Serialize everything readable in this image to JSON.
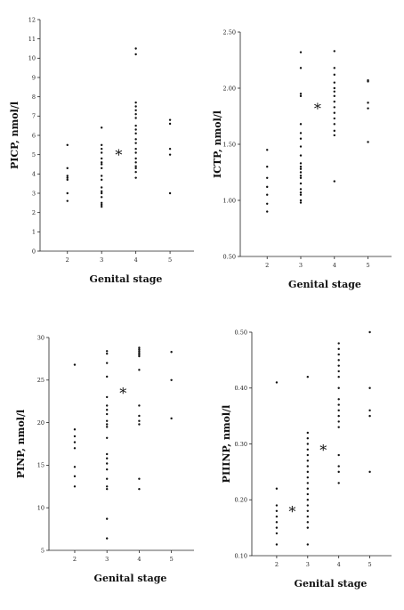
{
  "chart_data": [
    {
      "type": "scatter",
      "ylabel": "PICP, nmol/l",
      "xlabel": "Genital stage",
      "ylim": [
        0,
        12
      ],
      "yticks": [
        "0",
        "1",
        "2",
        "3",
        "4",
        "5",
        "6",
        "7",
        "8",
        "9",
        "10",
        "11",
        "12"
      ],
      "xticks": [
        "2",
        "3",
        "4",
        "5"
      ],
      "star_labels": [
        "*"
      ],
      "groups": [
        {
          "stage": 2,
          "values": [
            5.5,
            4.3,
            3.9,
            3.8,
            3.7,
            3.0,
            2.6
          ]
        },
        {
          "stage": 3,
          "values": [
            6.4,
            5.5,
            5.3,
            5.1,
            4.8,
            4.6,
            4.5,
            4.3,
            3.9,
            3.7,
            3.3,
            3.1,
            3.0,
            2.8,
            2.5,
            2.4,
            2.3
          ]
        },
        {
          "stage": 4,
          "values": [
            10.5,
            10.2,
            7.7,
            7.5,
            7.3,
            7.1,
            6.9,
            6.5,
            6.3,
            6.1,
            5.8,
            5.6,
            5.3,
            5.1,
            4.8,
            4.6,
            4.4,
            4.3,
            4.1,
            3.8
          ]
        },
        {
          "stage": 5,
          "values": [
            6.8,
            6.6,
            5.3,
            5.0,
            3.0
          ]
        }
      ],
      "stars": [
        {
          "x": 3.5,
          "y": 5.0
        }
      ]
    },
    {
      "type": "scatter",
      "ylabel": "ICTP, nmol/l",
      "xlabel": "Genital stage",
      "ylim": [
        0.5,
        2.5
      ],
      "yticks": [
        "0.50",
        "1.00",
        "1.50",
        "2.00",
        "2.50"
      ],
      "xticks": [
        "2",
        "3",
        "4",
        "5"
      ],
      "star_labels": [
        "*"
      ],
      "groups": [
        {
          "stage": 2,
          "values": [
            1.45,
            1.3,
            1.2,
            1.12,
            1.05,
            0.97,
            0.9
          ]
        },
        {
          "stage": 3,
          "values": [
            2.32,
            2.18,
            1.95,
            1.93,
            1.68,
            1.6,
            1.55,
            1.48,
            1.4,
            1.33,
            1.3,
            1.28,
            1.25,
            1.22,
            1.2,
            1.15,
            1.1,
            1.07,
            1.05,
            1.0,
            0.98
          ]
        },
        {
          "stage": 4,
          "values": [
            2.33,
            2.18,
            2.12,
            2.05,
            2.0,
            1.97,
            1.93,
            1.88,
            1.83,
            1.78,
            1.73,
            1.68,
            1.62,
            1.58,
            1.17
          ]
        },
        {
          "stage": 5,
          "values": [
            2.07,
            2.06,
            1.87,
            1.82,
            1.52
          ]
        }
      ],
      "stars": [
        {
          "x": 3.5,
          "y": 1.82
        }
      ]
    },
    {
      "type": "scatter",
      "ylabel": "PINP, nmol/l",
      "xlabel": "Genital stage",
      "ylim": [
        5,
        30
      ],
      "yticks": [
        "5",
        "10",
        "15",
        "20",
        "25",
        "30"
      ],
      "xticks": [
        "2",
        "3",
        "4",
        "5"
      ],
      "star_labels": [
        "*"
      ],
      "groups": [
        {
          "stage": 2,
          "values": [
            26.8,
            19.2,
            18.4,
            17.7,
            17.0,
            14.8,
            13.7,
            12.5
          ]
        },
        {
          "stage": 3,
          "values": [
            28.4,
            28.1,
            27.0,
            25.4,
            23.0,
            22.0,
            21.5,
            21.0,
            20.2,
            19.8,
            19.5,
            18.2,
            16.3,
            15.8,
            15.2,
            14.5,
            13.4,
            12.5,
            12.2,
            8.7,
            6.4
          ]
        },
        {
          "stage": 4,
          "values": [
            28.8,
            28.6,
            28.4,
            28.2,
            28.0,
            27.8,
            26.2,
            22.0,
            20.8,
            20.2,
            19.8,
            13.4,
            12.2
          ]
        },
        {
          "stage": 5,
          "values": [
            28.3,
            25.0,
            20.5
          ]
        }
      ],
      "stars": [
        {
          "x": 3.5,
          "y": 23.5
        }
      ]
    },
    {
      "type": "scatter",
      "ylabel": "PIIINP, nmol/l",
      "xlabel": "Genital stage",
      "ylim": [
        0.1,
        0.5
      ],
      "yticks": [
        "0.10",
        "0.20",
        "0.30",
        "0.40",
        "0.50"
      ],
      "xticks": [
        "2",
        "3",
        "4",
        "5"
      ],
      "star_labels": [
        "*",
        "*"
      ],
      "groups": [
        {
          "stage": 2,
          "values": [
            0.41,
            0.22,
            0.19,
            0.18,
            0.17,
            0.16,
            0.15,
            0.14,
            0.12
          ]
        },
        {
          "stage": 3,
          "values": [
            0.42,
            0.32,
            0.31,
            0.3,
            0.29,
            0.28,
            0.27,
            0.26,
            0.25,
            0.24,
            0.23,
            0.22,
            0.21,
            0.2,
            0.19,
            0.18,
            0.17,
            0.16,
            0.15,
            0.12
          ]
        },
        {
          "stage": 4,
          "values": [
            0.48,
            0.47,
            0.46,
            0.45,
            0.44,
            0.43,
            0.42,
            0.4,
            0.38,
            0.37,
            0.36,
            0.35,
            0.34,
            0.33,
            0.28,
            0.26,
            0.25,
            0.23
          ]
        },
        {
          "stage": 5,
          "values": [
            0.5,
            0.4,
            0.36,
            0.35,
            0.25
          ]
        }
      ],
      "stars": [
        {
          "x": 2.5,
          "y": 0.18
        },
        {
          "x": 3.5,
          "y": 0.29
        }
      ]
    }
  ]
}
